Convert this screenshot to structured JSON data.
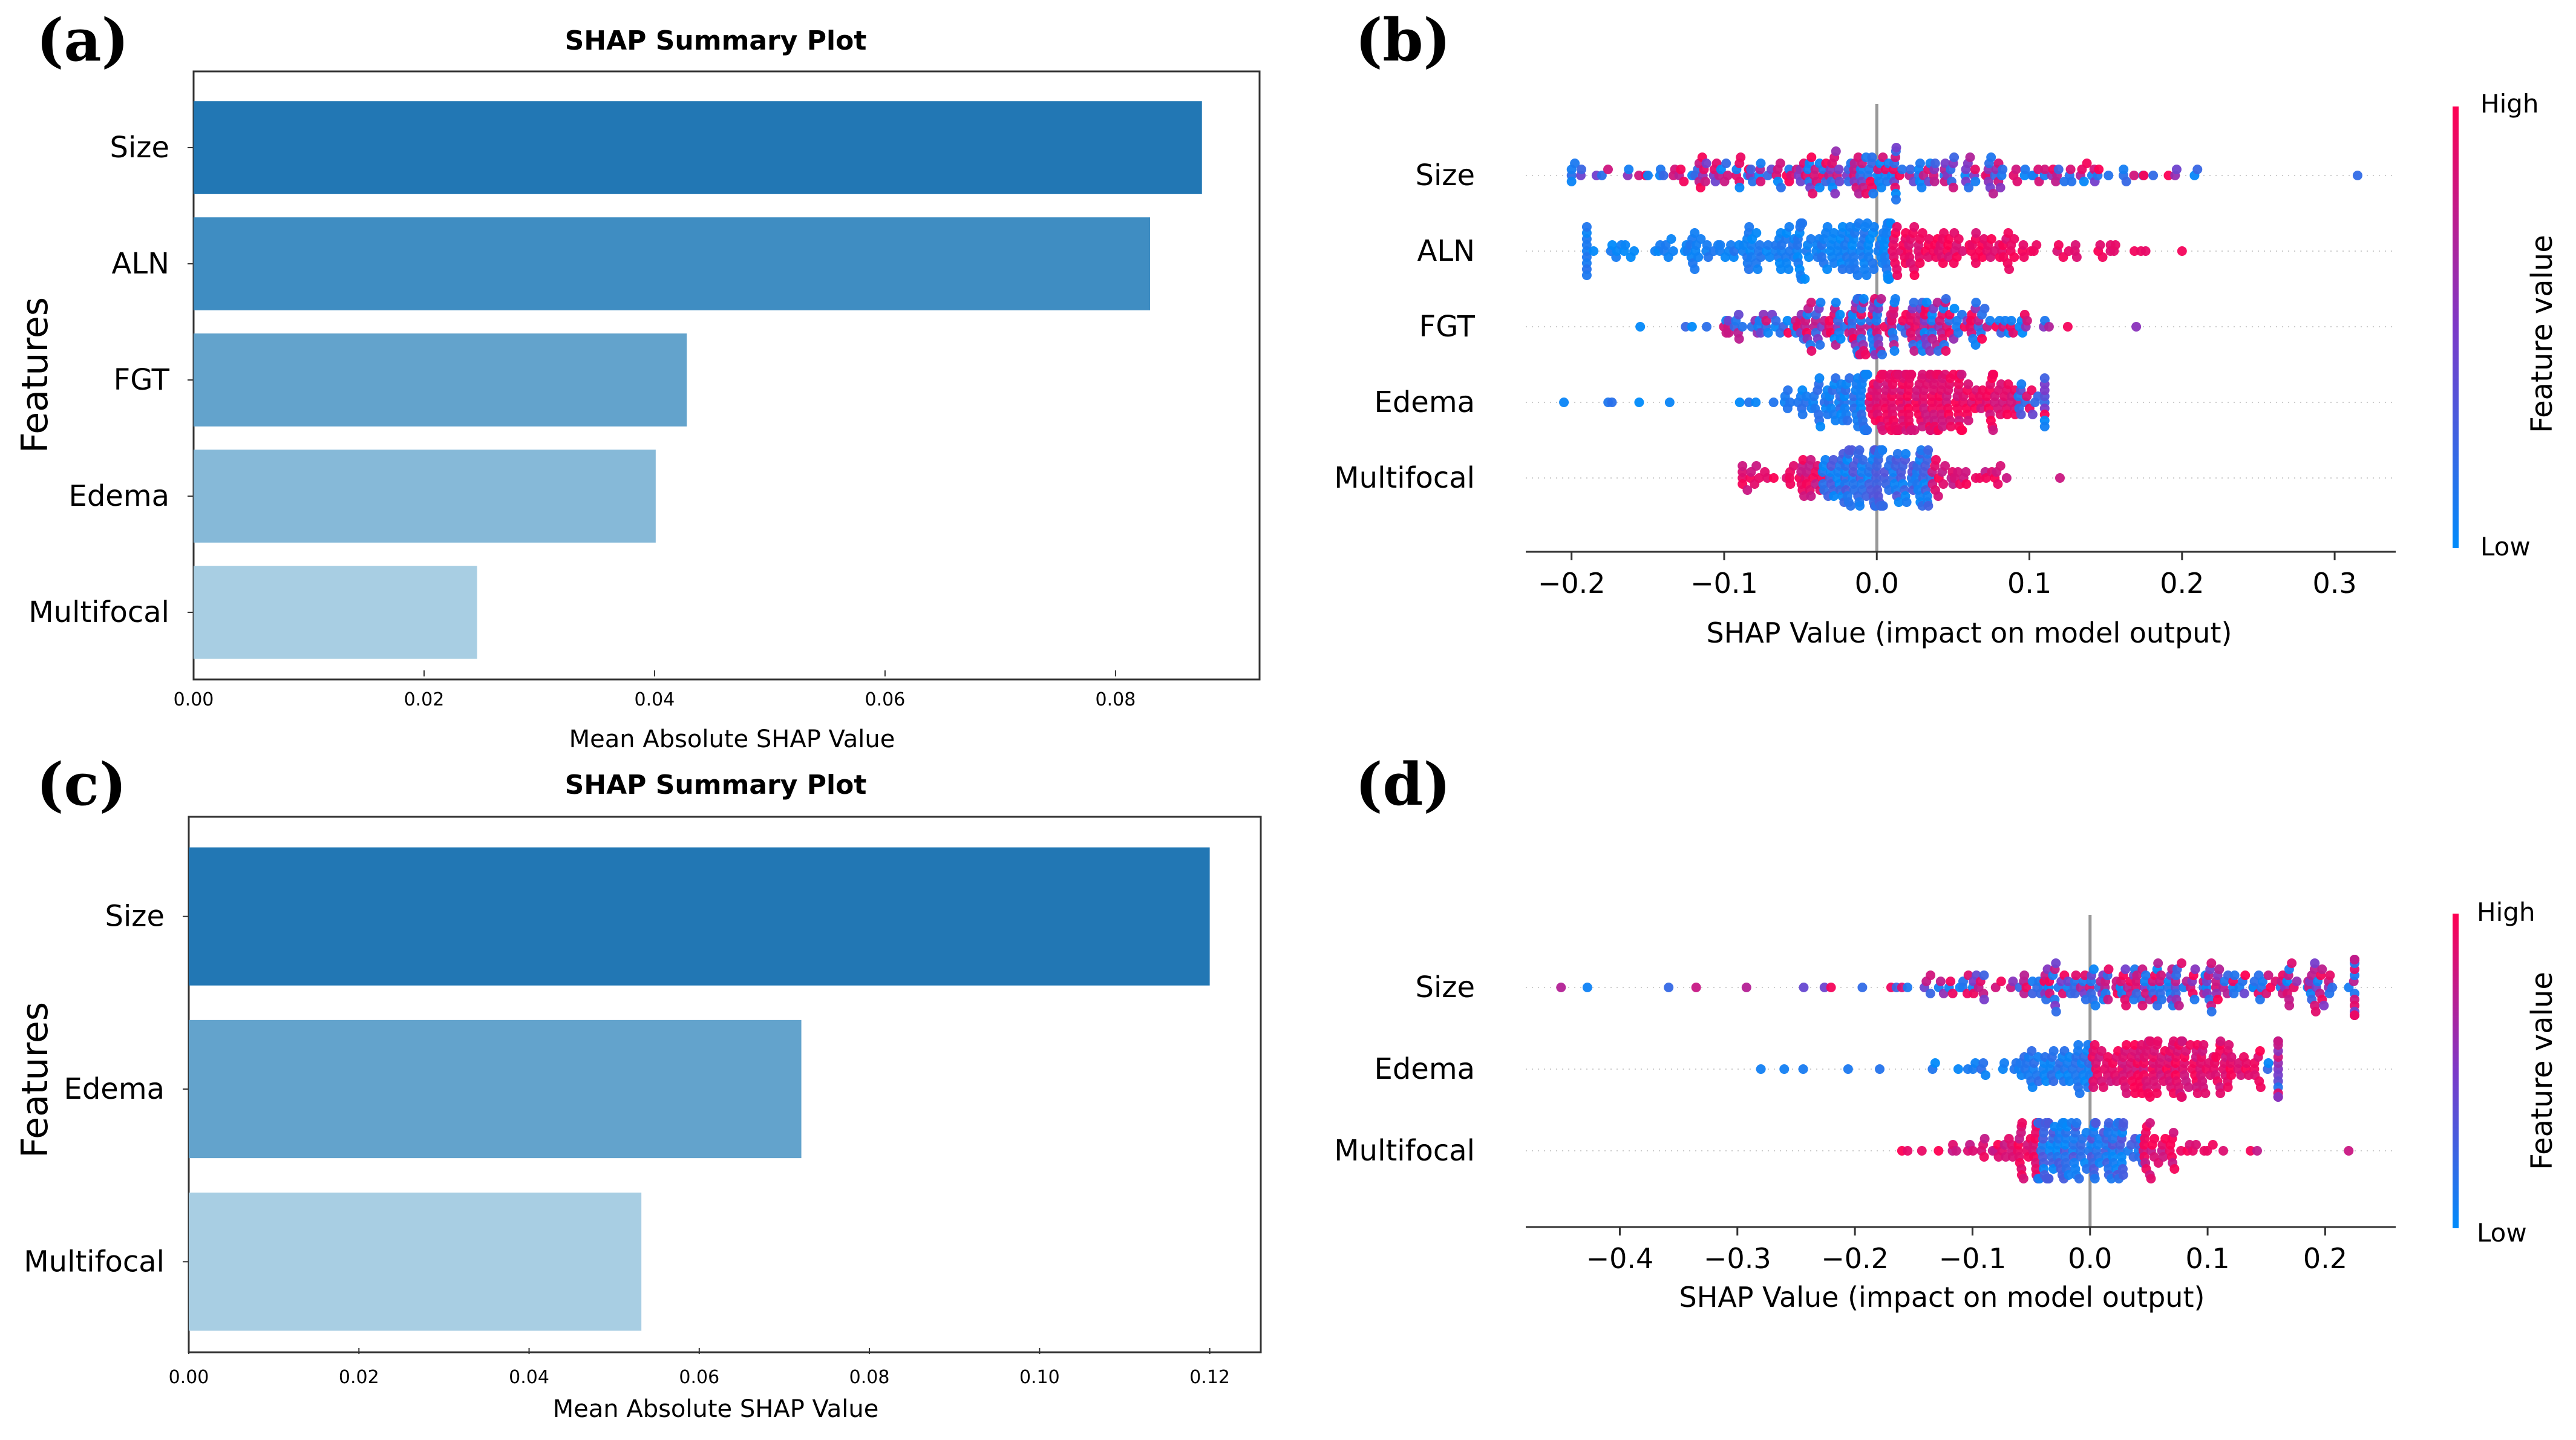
{
  "chart_data": [
    {
      "panel": "(a)",
      "type": "bar",
      "orientation": "horizontal",
      "title": "SHAP Summary Plot",
      "xlabel": "Mean Absolute SHAP Value",
      "ylabel": "Features",
      "categories": [
        "Size",
        "ALN",
        "FGT",
        "Edema",
        "Multifocal"
      ],
      "values": [
        0.0875,
        0.083,
        0.0428,
        0.0401,
        0.0246
      ],
      "colors": [
        "#2277b4",
        "#3f8dc2",
        "#63a3cc",
        "#86b9d8",
        "#a8cee3"
      ],
      "xlim": [
        0,
        0.0925
      ],
      "xticks": [
        0,
        0.02,
        0.04,
        0.06,
        0.08
      ],
      "xtick_labels": [
        "0.00",
        "0.02",
        "0.04",
        "0.06",
        "0.08"
      ]
    },
    {
      "panel": "(b)",
      "type": "scatter",
      "subtype": "beeswarm",
      "xlabel": "SHAP Value (impact on model output)",
      "categories": [
        "Size",
        "ALN",
        "FGT",
        "Edema",
        "Multifocal"
      ],
      "xlim": [
        -0.23,
        0.34
      ],
      "xticks": [
        -0.2,
        -0.1,
        0.0,
        0.1,
        0.2,
        0.3
      ],
      "xtick_labels": [
        "−0.2",
        "−0.1",
        "0.0",
        "0.1",
        "0.2",
        "0.3"
      ],
      "colorbar": {
        "title": "Feature value",
        "high": "High",
        "low": "Low",
        "high_color": "#ff0052",
        "low_color": "#008bfb"
      },
      "series": [
        {
          "name": "Size",
          "min": -0.2,
          "max": 0.315,
          "center": 0.0,
          "spread": 0.09,
          "mode": "mixed",
          "n": 240,
          "seed": 11
        },
        {
          "name": "ALN",
          "min": -0.19,
          "max": 0.2,
          "center": -0.02,
          "spread": 0.08,
          "mode": "split",
          "split": 0.01,
          "n": 300,
          "seed": 23
        },
        {
          "name": "FGT",
          "min": -0.155,
          "max": 0.17,
          "center": 0.0,
          "spread": 0.055,
          "mode": "mixed",
          "n": 240,
          "seed": 37
        },
        {
          "name": "Edema",
          "min": -0.205,
          "max": 0.11,
          "center": 0.025,
          "spread": 0.045,
          "mode": "split-high-center",
          "split": -0.005,
          "n": 300,
          "seed": 41
        },
        {
          "name": "Multifocal",
          "min": -0.088,
          "max": 0.12,
          "center": 0.0,
          "spread": 0.04,
          "mode": "inverse",
          "n": 200,
          "seed": 53
        }
      ]
    },
    {
      "panel": "(c)",
      "type": "bar",
      "orientation": "horizontal",
      "title": "SHAP Summary Plot",
      "xlabel": "Mean Absolute SHAP Value",
      "ylabel": "Features",
      "categories": [
        "Size",
        "Edema",
        "Multifocal"
      ],
      "values": [
        0.12,
        0.072,
        0.0532
      ],
      "colors": [
        "#2277b4",
        "#63a3cc",
        "#a8cee3"
      ],
      "xlim": [
        0,
        0.126
      ],
      "xticks": [
        0,
        0.02,
        0.04,
        0.06,
        0.08,
        0.1,
        0.12
      ],
      "xtick_labels": [
        "0.00",
        "0.02",
        "0.04",
        "0.06",
        "0.08",
        "0.10",
        "0.12"
      ]
    },
    {
      "panel": "(d)",
      "type": "scatter",
      "subtype": "beeswarm",
      "xlabel": "SHAP Value (impact on model output)",
      "categories": [
        "Size",
        "Edema",
        "Multifocal"
      ],
      "xlim": [
        -0.48,
        0.26
      ],
      "xticks": [
        -0.4,
        -0.3,
        -0.2,
        -0.1,
        0.0,
        0.1,
        0.2
      ],
      "xtick_labels": [
        "−0.4",
        "−0.3",
        "−0.2",
        "−0.1",
        "0.0",
        "0.1",
        "0.2"
      ],
      "colorbar": {
        "title": "Feature value",
        "high": "High",
        "low": "Low",
        "high_color": "#ff0052",
        "low_color": "#008bfb"
      },
      "series": [
        {
          "name": "Size",
          "min": -0.45,
          "max": 0.225,
          "center": 0.05,
          "spread": 0.11,
          "mode": "mixed",
          "n": 260,
          "seed": 61
        },
        {
          "name": "Edema",
          "min": -0.28,
          "max": 0.16,
          "center": 0.045,
          "spread": 0.07,
          "mode": "split-high-center",
          "split": 0.0,
          "n": 260,
          "seed": 73
        },
        {
          "name": "Multifocal",
          "min": -0.16,
          "max": 0.22,
          "center": 0.0,
          "spread": 0.05,
          "mode": "inverse",
          "n": 220,
          "seed": 89
        }
      ]
    }
  ]
}
